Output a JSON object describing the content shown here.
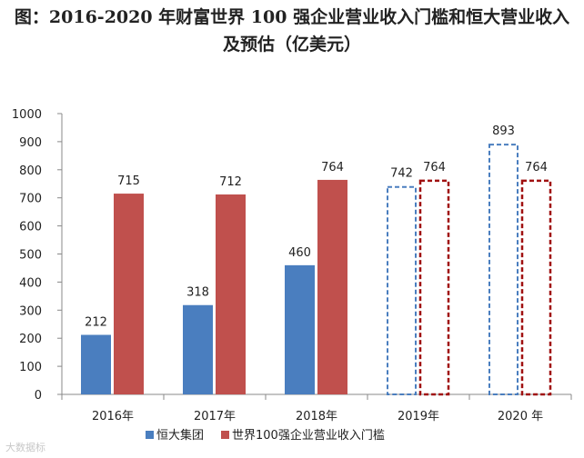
{
  "title_line1": "图：2016-2020 年财富世界 100 强企业营业收入门槛和恒大营业收入",
  "title_line2": "及预估（亿美元）",
  "watermark": "大数据标",
  "colors": {
    "evergrande": "#4a7ebf",
    "threshold": "#c0504d",
    "threshold_dash": "#a01010",
    "evergrande_dash": "#4a7ebf"
  },
  "chart_data": {
    "type": "bar",
    "title": "2016-2020 年财富世界 100 强企业营业收入门槛和恒大营业收入及预估（亿美元）",
    "categories": [
      "2016年",
      "2017年",
      "2018年",
      "2019年",
      "2020 年"
    ],
    "ylim": [
      0,
      1000
    ],
    "yticks": [
      0,
      100,
      200,
      300,
      400,
      500,
      600,
      700,
      800,
      900,
      1000
    ],
    "estimated_categories": [
      "2019年",
      "2020 年"
    ],
    "series": [
      {
        "name": "恒大集团",
        "values": [
          212,
          318,
          460,
          742,
          893
        ]
      },
      {
        "name": "世界100强企业营业收入门槛",
        "values": [
          715,
          712,
          764,
          764,
          764
        ]
      }
    ],
    "legend": "bottom"
  }
}
